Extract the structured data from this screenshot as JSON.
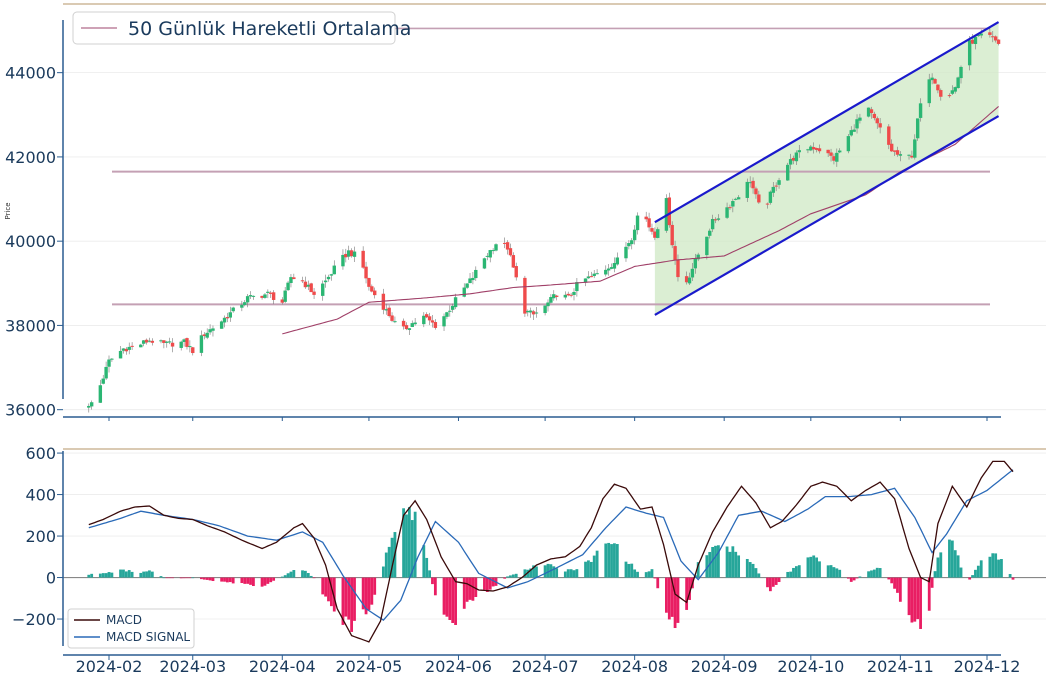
{
  "chart_data": [
    {
      "type": "candlestick",
      "ylabel": "Price",
      "ylim": [
        35850,
        45250
      ],
      "yticks": [
        "36000",
        "38000",
        "40000",
        "42000",
        "44000"
      ],
      "legend": [
        {
          "label": "50 Günlük Hareketli Ortalama",
          "color": "#b06a8a"
        }
      ],
      "support_levels": [
        38500,
        41650
      ],
      "resistance_level": 45050,
      "channel": {
        "start": "2024-08-08",
        "end": "2024-12-05",
        "upper": [
          40450,
          45200
        ],
        "lower": [
          38250,
          42970
        ],
        "fill_color": "#cfe8c4",
        "line_color": "#1a1acc"
      },
      "colors": {
        "up": "#2bb673",
        "down": "#ef4b4b",
        "ma": "#a04068"
      },
      "close_anchors": [
        [
          "2024-01-25",
          36050
        ],
        [
          "2024-01-28",
          36400
        ],
        [
          "2024-02-01",
          37150
        ],
        [
          "2024-02-06",
          37450
        ],
        [
          "2024-02-10",
          37500
        ],
        [
          "2024-02-15",
          37650
        ],
        [
          "2024-02-20",
          37550
        ],
        [
          "2024-02-27",
          37600
        ],
        [
          "2024-03-01",
          37400
        ],
        [
          "2024-03-05",
          37800
        ],
        [
          "2024-03-10",
          38050
        ],
        [
          "2024-03-15",
          38350
        ],
        [
          "2024-03-20",
          38650
        ],
        [
          "2024-03-27",
          38750
        ],
        [
          "2024-04-01",
          38550
        ],
        [
          "2024-04-04",
          39150
        ],
        [
          "2024-04-08",
          39050
        ],
        [
          "2024-04-12",
          38750
        ],
        [
          "2024-04-16",
          39050
        ],
        [
          "2024-04-20",
          39450
        ],
        [
          "2024-04-24",
          39750
        ],
        [
          "2024-04-28",
          39600
        ],
        [
          "2024-05-01",
          38900
        ],
        [
          "2024-05-05",
          38550
        ],
        [
          "2024-05-08",
          38250
        ],
        [
          "2024-05-12",
          37850
        ],
        [
          "2024-05-16",
          38050
        ],
        [
          "2024-05-20",
          38200
        ],
        [
          "2024-05-24",
          38000
        ],
        [
          "2024-05-28",
          38300
        ],
        [
          "2024-06-01",
          38700
        ],
        [
          "2024-06-06",
          39150
        ],
        [
          "2024-06-10",
          39600
        ],
        [
          "2024-06-14",
          39950
        ],
        [
          "2024-06-18",
          39850
        ],
        [
          "2024-06-21",
          39100
        ],
        [
          "2024-06-24",
          38350
        ],
        [
          "2024-06-27",
          38250
        ],
        [
          "2024-07-01",
          38450
        ],
        [
          "2024-07-05",
          38750
        ],
        [
          "2024-07-09",
          38650
        ],
        [
          "2024-07-13",
          39050
        ],
        [
          "2024-07-17",
          39150
        ],
        [
          "2024-07-21",
          39300
        ],
        [
          "2024-07-26",
          39550
        ],
        [
          "2024-07-31",
          40100
        ],
        [
          "2024-08-03",
          40850
        ],
        [
          "2024-08-06",
          40350
        ],
        [
          "2024-08-08",
          40150
        ],
        [
          "2024-08-12",
          40950
        ],
        [
          "2024-08-14",
          39950
        ],
        [
          "2024-08-17",
          38750
        ],
        [
          "2024-08-20",
          39200
        ],
        [
          "2024-08-24",
          39850
        ],
        [
          "2024-08-28",
          40450
        ],
        [
          "2024-09-02",
          40800
        ],
        [
          "2024-09-06",
          41100
        ],
        [
          "2024-09-10",
          41450
        ],
        [
          "2024-09-14",
          40650
        ],
        [
          "2024-09-18",
          41250
        ],
        [
          "2024-09-22",
          41750
        ],
        [
          "2024-09-26",
          42050
        ],
        [
          "2024-10-01",
          42250
        ],
        [
          "2024-10-05",
          42150
        ],
        [
          "2024-10-09",
          41950
        ],
        [
          "2024-10-13",
          42350
        ],
        [
          "2024-10-17",
          42850
        ],
        [
          "2024-10-21",
          43100
        ],
        [
          "2024-10-25",
          42650
        ],
        [
          "2024-10-29",
          42150
        ],
        [
          "2024-11-02",
          41950
        ],
        [
          "2024-11-05",
          42050
        ],
        [
          "2024-11-08",
          43250
        ],
        [
          "2024-11-12",
          43950
        ],
        [
          "2024-11-16",
          43350
        ],
        [
          "2024-11-20",
          43650
        ],
        [
          "2024-11-24",
          44650
        ],
        [
          "2024-11-28",
          44850
        ],
        [
          "2024-12-02",
          44850
        ],
        [
          "2024-12-05",
          44700
        ]
      ],
      "ma50_anchors": [
        [
          "2024-04-01",
          37800
        ],
        [
          "2024-04-20",
          38150
        ],
        [
          "2024-05-01",
          38550
        ],
        [
          "2024-05-20",
          38650
        ],
        [
          "2024-06-05",
          38750
        ],
        [
          "2024-06-20",
          38900
        ],
        [
          "2024-07-01",
          38950
        ],
        [
          "2024-07-20",
          39050
        ],
        [
          "2024-08-01",
          39400
        ],
        [
          "2024-08-15",
          39550
        ],
        [
          "2024-09-01",
          39650
        ],
        [
          "2024-09-20",
          40250
        ],
        [
          "2024-10-01",
          40650
        ],
        [
          "2024-10-20",
          41100
        ],
        [
          "2024-11-01",
          41650
        ],
        [
          "2024-11-20",
          42300
        ],
        [
          "2024-12-05",
          43200
        ]
      ]
    },
    {
      "type": "line_bar",
      "ylim": [
        -330,
        610
      ],
      "yticks": [
        "−200",
        "0",
        "200",
        "400",
        "600"
      ],
      "xticks": [
        "2024-02",
        "2024-03",
        "2024-04",
        "2024-05",
        "2024-06",
        "2024-07",
        "2024-08",
        "2024-09",
        "2024-10",
        "2024-11",
        "2024-12"
      ],
      "series": [
        {
          "name": "MACD",
          "color": "#3a0a0a"
        },
        {
          "name": "MACD SIGNAL",
          "color": "#2a6ab8"
        }
      ],
      "histogram_colors": {
        "positive": "#26a69a",
        "negative": "#e91e63"
      },
      "macd_anchors": [
        [
          "2024-01-25",
          255
        ],
        [
          "2024-01-30",
          280
        ],
        [
          "2024-02-05",
          320
        ],
        [
          "2024-02-10",
          340
        ],
        [
          "2024-02-15",
          345
        ],
        [
          "2024-02-20",
          300
        ],
        [
          "2024-02-25",
          285
        ],
        [
          "2024-03-01",
          280
        ],
        [
          "2024-03-06",
          250
        ],
        [
          "2024-03-12",
          220
        ],
        [
          "2024-03-18",
          180
        ],
        [
          "2024-03-25",
          140
        ],
        [
          "2024-03-30",
          170
        ],
        [
          "2024-04-05",
          240
        ],
        [
          "2024-04-08",
          260
        ],
        [
          "2024-04-12",
          190
        ],
        [
          "2024-04-16",
          60
        ],
        [
          "2024-04-20",
          -150
        ],
        [
          "2024-04-25",
          -280
        ],
        [
          "2024-05-01",
          -310
        ],
        [
          "2024-05-05",
          -210
        ],
        [
          "2024-05-09",
          50
        ],
        [
          "2024-05-13",
          300
        ],
        [
          "2024-05-17",
          370
        ],
        [
          "2024-05-21",
          280
        ],
        [
          "2024-05-26",
          100
        ],
        [
          "2024-05-31",
          -20
        ],
        [
          "2024-06-04",
          -30
        ],
        [
          "2024-06-08",
          -60
        ],
        [
          "2024-06-13",
          -65
        ],
        [
          "2024-06-18",
          -45
        ],
        [
          "2024-06-23",
          0
        ],
        [
          "2024-06-28",
          60
        ],
        [
          "2024-07-03",
          90
        ],
        [
          "2024-07-08",
          100
        ],
        [
          "2024-07-13",
          150
        ],
        [
          "2024-07-17",
          240
        ],
        [
          "2024-07-21",
          380
        ],
        [
          "2024-07-25",
          450
        ],
        [
          "2024-07-29",
          430
        ],
        [
          "2024-08-03",
          330
        ],
        [
          "2024-08-07",
          340
        ],
        [
          "2024-08-11",
          160
        ],
        [
          "2024-08-15",
          -80
        ],
        [
          "2024-08-19",
          -120
        ],
        [
          "2024-08-23",
          60
        ],
        [
          "2024-08-28",
          220
        ],
        [
          "2024-09-02",
          340
        ],
        [
          "2024-09-07",
          440
        ],
        [
          "2024-09-12",
          360
        ],
        [
          "2024-09-17",
          240
        ],
        [
          "2024-09-21",
          270
        ],
        [
          "2024-09-26",
          350
        ],
        [
          "2024-10-01",
          440
        ],
        [
          "2024-10-05",
          460
        ],
        [
          "2024-10-10",
          440
        ],
        [
          "2024-10-15",
          370
        ],
        [
          "2024-10-20",
          420
        ],
        [
          "2024-10-25",
          460
        ],
        [
          "2024-10-30",
          380
        ],
        [
          "2024-11-04",
          140
        ],
        [
          "2024-11-08",
          0
        ],
        [
          "2024-11-11",
          -20
        ],
        [
          "2024-11-14",
          260
        ],
        [
          "2024-11-19",
          440
        ],
        [
          "2024-11-24",
          340
        ],
        [
          "2024-11-29",
          480
        ],
        [
          "2024-12-03",
          560
        ],
        [
          "2024-12-07",
          560
        ],
        [
          "2024-12-10",
          510
        ]
      ],
      "signal_anchors": [
        [
          "2024-01-25",
          240
        ],
        [
          "2024-02-05",
          285
        ],
        [
          "2024-02-12",
          320
        ],
        [
          "2024-02-20",
          300
        ],
        [
          "2024-03-01",
          280
        ],
        [
          "2024-03-10",
          250
        ],
        [
          "2024-03-20",
          200
        ],
        [
          "2024-03-30",
          180
        ],
        [
          "2024-04-08",
          220
        ],
        [
          "2024-04-15",
          170
        ],
        [
          "2024-04-22",
          10
        ],
        [
          "2024-04-30",
          -150
        ],
        [
          "2024-05-06",
          -205
        ],
        [
          "2024-05-12",
          -110
        ],
        [
          "2024-05-18",
          100
        ],
        [
          "2024-05-24",
          270
        ],
        [
          "2024-06-01",
          170
        ],
        [
          "2024-06-08",
          20
        ],
        [
          "2024-06-18",
          -50
        ],
        [
          "2024-06-25",
          -20
        ],
        [
          "2024-07-04",
          40
        ],
        [
          "2024-07-14",
          110
        ],
        [
          "2024-07-22",
          240
        ],
        [
          "2024-07-29",
          340
        ],
        [
          "2024-08-05",
          310
        ],
        [
          "2024-08-11",
          290
        ],
        [
          "2024-08-17",
          80
        ],
        [
          "2024-08-23",
          -10
        ],
        [
          "2024-08-30",
          120
        ],
        [
          "2024-09-06",
          300
        ],
        [
          "2024-09-14",
          320
        ],
        [
          "2024-09-22",
          270
        ],
        [
          "2024-09-30",
          330
        ],
        [
          "2024-10-06",
          390
        ],
        [
          "2024-10-14",
          390
        ],
        [
          "2024-10-22",
          400
        ],
        [
          "2024-10-30",
          430
        ],
        [
          "2024-11-06",
          290
        ],
        [
          "2024-11-12",
          120
        ],
        [
          "2024-11-17",
          210
        ],
        [
          "2024-11-24",
          370
        ],
        [
          "2024-12-01",
          420
        ],
        [
          "2024-12-10",
          520
        ]
      ]
    }
  ]
}
